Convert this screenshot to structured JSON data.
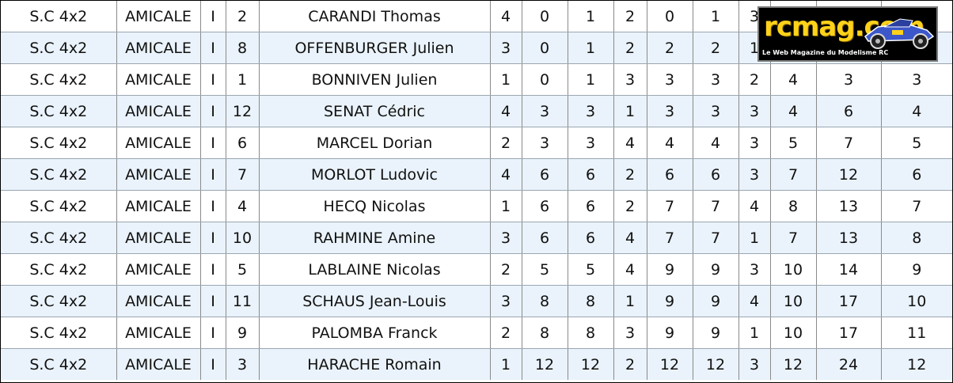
{
  "rows": [
    {
      "cat": "S.C 4x2",
      "club": "AMICALE",
      "grp": "I",
      "num": "2",
      "name": "CARANDI Thomas",
      "c1": "4",
      "c2": "0",
      "c3": "1",
      "c4": "2",
      "c5": "0",
      "c6": "1",
      "c7": "3",
      "c8": "",
      "c9": "",
      "c10": ""
    },
    {
      "cat": "S.C 4x2",
      "club": "AMICALE",
      "grp": "I",
      "num": "8",
      "name": "OFFENBURGER Julien",
      "c1": "3",
      "c2": "0",
      "c3": "1",
      "c4": "2",
      "c5": "2",
      "c6": "2",
      "c7": "1",
      "c8": "",
      "c9": "",
      "c10": ""
    },
    {
      "cat": "S.C 4x2",
      "club": "AMICALE",
      "grp": "I",
      "num": "1",
      "name": "BONNIVEN Julien",
      "c1": "1",
      "c2": "0",
      "c3": "1",
      "c4": "3",
      "c5": "3",
      "c6": "3",
      "c7": "2",
      "c8": "4",
      "c9": "3",
      "c10": "3"
    },
    {
      "cat": "S.C 4x2",
      "club": "AMICALE",
      "grp": "I",
      "num": "12",
      "name": "SENAT Cédric",
      "c1": "4",
      "c2": "3",
      "c3": "3",
      "c4": "1",
      "c5": "3",
      "c6": "3",
      "c7": "3",
      "c8": "4",
      "c9": "6",
      "c10": "4"
    },
    {
      "cat": "S.C 4x2",
      "club": "AMICALE",
      "grp": "I",
      "num": "6",
      "name": "MARCEL Dorian",
      "c1": "2",
      "c2": "3",
      "c3": "3",
      "c4": "4",
      "c5": "4",
      "c6": "4",
      "c7": "3",
      "c8": "5",
      "c9": "7",
      "c10": "5"
    },
    {
      "cat": "S.C 4x2",
      "club": "AMICALE",
      "grp": "I",
      "num": "7",
      "name": "MORLOT Ludovic",
      "c1": "4",
      "c2": "6",
      "c3": "6",
      "c4": "2",
      "c5": "6",
      "c6": "6",
      "c7": "3",
      "c8": "7",
      "c9": "12",
      "c10": "6"
    },
    {
      "cat": "S.C 4x2",
      "club": "AMICALE",
      "grp": "I",
      "num": "4",
      "name": "HECQ Nicolas",
      "c1": "1",
      "c2": "6",
      "c3": "6",
      "c4": "2",
      "c5": "7",
      "c6": "7",
      "c7": "4",
      "c8": "8",
      "c9": "13",
      "c10": "7"
    },
    {
      "cat": "S.C 4x2",
      "club": "AMICALE",
      "grp": "I",
      "num": "10",
      "name": "RAHMINE Amine",
      "c1": "3",
      "c2": "6",
      "c3": "6",
      "c4": "4",
      "c5": "7",
      "c6": "7",
      "c7": "1",
      "c8": "7",
      "c9": "13",
      "c10": "8"
    },
    {
      "cat": "S.C 4x2",
      "club": "AMICALE",
      "grp": "I",
      "num": "5",
      "name": "LABLAINE Nicolas",
      "c1": "2",
      "c2": "5",
      "c3": "5",
      "c4": "4",
      "c5": "9",
      "c6": "9",
      "c7": "3",
      "c8": "10",
      "c9": "14",
      "c10": "9"
    },
    {
      "cat": "S.C 4x2",
      "club": "AMICALE",
      "grp": "I",
      "num": "11",
      "name": "SCHAUS Jean-Louis",
      "c1": "3",
      "c2": "8",
      "c3": "8",
      "c4": "1",
      "c5": "9",
      "c6": "9",
      "c7": "4",
      "c8": "10",
      "c9": "17",
      "c10": "10"
    },
    {
      "cat": "S.C 4x2",
      "club": "AMICALE",
      "grp": "I",
      "num": "9",
      "name": "PALOMBA Franck",
      "c1": "2",
      "c2": "8",
      "c3": "8",
      "c4": "3",
      "c5": "9",
      "c6": "9",
      "c7": "1",
      "c8": "10",
      "c9": "17",
      "c10": "11"
    },
    {
      "cat": "S.C 4x2",
      "club": "AMICALE",
      "grp": "I",
      "num": "3",
      "name": "HARACHE Romain",
      "c1": "1",
      "c2": "12",
      "c3": "12",
      "c4": "2",
      "c5": "12",
      "c6": "12",
      "c7": "3",
      "c8": "12",
      "c9": "24",
      "c10": "12"
    }
  ],
  "logo": {
    "name": "rcmag.com",
    "tagline": "Le Web Magazine du Modelisme RC",
    "text_color": "#ffd21a",
    "background": "#000000"
  },
  "colors": {
    "row_alt": "#eaf3fb",
    "row": "#ffffff"
  }
}
